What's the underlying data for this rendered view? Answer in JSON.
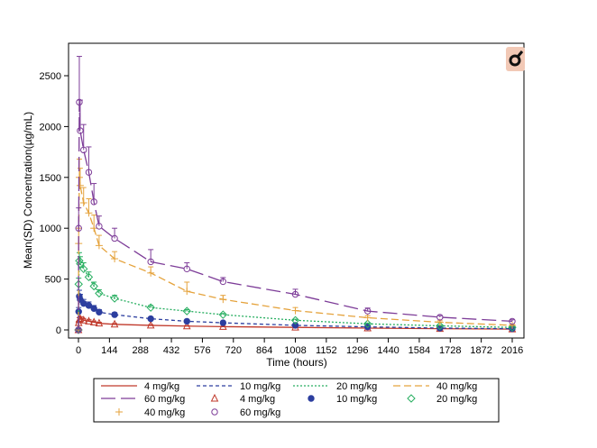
{
  "chart_data": {
    "type": "line",
    "xlabel": "Time (hours)",
    "ylabel": "Mean(SD) Concentration(µg/mL)",
    "xlim": [
      0,
      2016
    ],
    "ylim": [
      0,
      2700
    ],
    "xticks": [
      0,
      144,
      288,
      432,
      576,
      720,
      864,
      1008,
      1152,
      1296,
      1440,
      1584,
      1728,
      1872,
      2016
    ],
    "yticks": [
      0,
      500,
      1000,
      1500,
      2000,
      2500
    ],
    "grid": false,
    "legend_position": "bottom",
    "series": [
      {
        "name": "4 mg/kg",
        "color": "#c0392b",
        "dash": "solid",
        "marker": "triangle",
        "x": [
          0,
          1,
          4,
          8,
          24,
          48,
          72,
          96,
          168,
          336,
          504,
          672,
          1008,
          1344,
          1680,
          2016
        ],
        "y": [
          0,
          70,
          100,
          110,
          95,
          85,
          75,
          65,
          55,
          45,
          38,
          32,
          25,
          18,
          12,
          8
        ],
        "sd": [
          0,
          15,
          20,
          20,
          18,
          15,
          12,
          10,
          8,
          6,
          5,
          4,
          3,
          2,
          2,
          1
        ]
      },
      {
        "name": "10 mg/kg",
        "color": "#2c3e9f",
        "dash": "short",
        "marker": "dot",
        "x": [
          0,
          1,
          4,
          8,
          24,
          48,
          72,
          96,
          168,
          336,
          504,
          672,
          1008,
          1344,
          1680,
          2016
        ],
        "y": [
          0,
          180,
          330,
          300,
          260,
          240,
          210,
          175,
          150,
          110,
          85,
          70,
          45,
          30,
          18,
          12
        ],
        "sd": [
          0,
          40,
          60,
          50,
          40,
          35,
          30,
          25,
          20,
          15,
          12,
          10,
          8,
          5,
          3,
          2
        ]
      },
      {
        "name": "20 mg/kg",
        "color": "#27ae60",
        "dash": "dotted",
        "marker": "diamond",
        "x": [
          0,
          1,
          4,
          8,
          24,
          48,
          72,
          96,
          168,
          336,
          504,
          672,
          1008,
          1344,
          1680,
          2016
        ],
        "y": [
          0,
          450,
          680,
          650,
          600,
          520,
          430,
          360,
          310,
          220,
          185,
          150,
          95,
          60,
          40,
          25
        ],
        "sd": [
          0,
          60,
          80,
          70,
          60,
          50,
          40,
          35,
          30,
          20,
          15,
          12,
          10,
          8,
          5,
          4
        ]
      },
      {
        "name": "40 mg/kg",
        "color": "#e5a33d",
        "dash": "medium",
        "marker": "plus",
        "x": [
          0,
          1,
          4,
          8,
          24,
          48,
          72,
          96,
          168,
          336,
          504,
          672,
          1008,
          1344,
          1680,
          2016
        ],
        "y": [
          0,
          850,
          1500,
          1420,
          1250,
          1150,
          1000,
          830,
          700,
          560,
          380,
          300,
          190,
          120,
          75,
          45
        ],
        "sd": [
          0,
          150,
          180,
          170,
          150,
          140,
          130,
          100,
          70,
          60,
          90,
          40,
          30,
          20,
          15,
          10
        ]
      },
      {
        "name": "60 mg/kg",
        "color": "#7d3c98",
        "dash": "long",
        "marker": "circle",
        "x": [
          0,
          1,
          4,
          8,
          24,
          48,
          72,
          96,
          168,
          336,
          504,
          672,
          1008,
          1344,
          1680,
          2016
        ],
        "y": [
          0,
          1000,
          2240,
          1960,
          1770,
          1550,
          1260,
          1020,
          900,
          670,
          600,
          475,
          350,
          185,
          125,
          85
        ],
        "sd": [
          0,
          200,
          450,
          300,
          250,
          250,
          180,
          100,
          100,
          120,
          60,
          40,
          50,
          30,
          15,
          15
        ]
      }
    ],
    "legend_rows": [
      [
        {
          "series": 0,
          "kind": "line",
          "label": "4 mg/kg"
        },
        {
          "series": 1,
          "kind": "line",
          "label": "10 mg/kg"
        },
        {
          "series": 2,
          "kind": "line",
          "label": "20 mg/kg"
        },
        {
          "series": 3,
          "kind": "line",
          "label": "40 mg/kg"
        }
      ],
      [
        {
          "series": 4,
          "kind": "line",
          "label": "60 mg/kg"
        },
        {
          "series": 0,
          "kind": "marker",
          "label": "4 mg/kg"
        },
        {
          "series": 1,
          "kind": "marker",
          "label": "10 mg/kg"
        },
        {
          "series": 2,
          "kind": "marker",
          "label": "20 mg/kg"
        }
      ],
      [
        {
          "series": 3,
          "kind": "marker",
          "label": "40 mg/kg"
        },
        {
          "series": 4,
          "kind": "marker",
          "label": "60 mg/kg"
        }
      ]
    ]
  },
  "badge": {
    "icon": "female-symbol-icon",
    "color": "#f2c9b6"
  }
}
